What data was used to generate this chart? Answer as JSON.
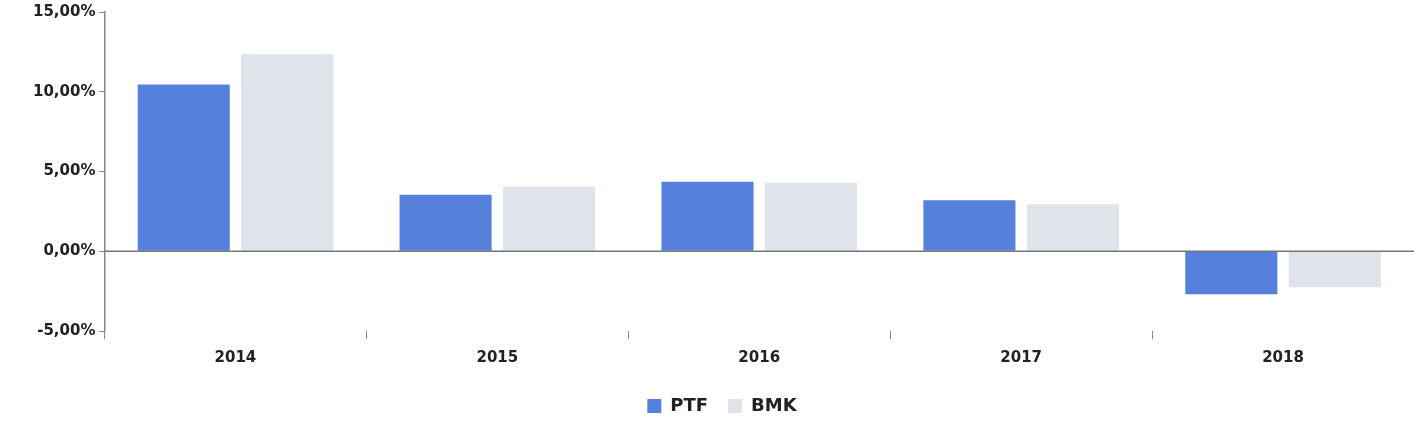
{
  "chart_data": {
    "type": "bar",
    "categories": [
      "2014",
      "2015",
      "2016",
      "2017",
      "2018"
    ],
    "series": [
      {
        "name": "PTF",
        "color": "#5580dc",
        "values": [
          10.45,
          3.55,
          4.35,
          3.2,
          -2.7
        ]
      },
      {
        "name": "BMK",
        "color": "#dfe3ea",
        "values": [
          12.35,
          4.05,
          4.3,
          2.95,
          -2.25
        ]
      }
    ],
    "ylim": [
      -5,
      15
    ],
    "yticks": [
      {
        "value": -5,
        "label": "-5,00%"
      },
      {
        "value": 0,
        "label": "0,00%"
      },
      {
        "value": 5,
        "label": "5,00%"
      },
      {
        "value": 10,
        "label": "10,00%"
      },
      {
        "value": 15,
        "label": "15,00%"
      }
    ],
    "ref_lines": [
      {
        "axis": "y",
        "value": 0,
        "color": "#777777"
      }
    ],
    "grid": false,
    "legend": "bottom"
  }
}
